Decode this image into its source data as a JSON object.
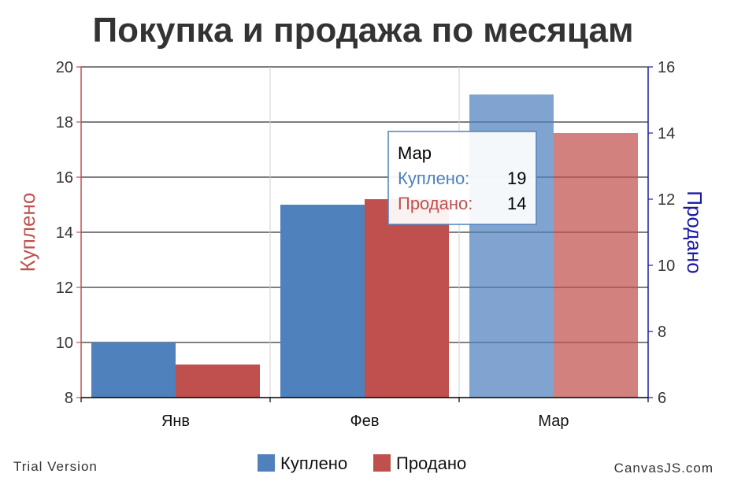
{
  "chart_data": {
    "type": "bar",
    "title": "Покупка и продажа по месяцам",
    "categories": [
      "Янв",
      "Фев",
      "Мар"
    ],
    "series": [
      {
        "name": "Куплено",
        "axis": "left",
        "color": "#4f81bd",
        "values": [
          10,
          15,
          19
        ]
      },
      {
        "name": "Продано",
        "axis": "right",
        "color": "#c0504d",
        "values": [
          7,
          12,
          14
        ]
      }
    ],
    "y_left": {
      "label": "Куплено",
      "color": "#c0504d",
      "min": 8,
      "max": 20,
      "ticks": [
        8,
        10,
        12,
        14,
        16,
        18,
        20
      ]
    },
    "y_right": {
      "label": "Продано",
      "color": "#1a1aa6",
      "min": 6,
      "max": 16,
      "ticks": [
        6,
        8,
        10,
        12,
        14,
        16
      ]
    },
    "grid": true,
    "legend": "bottom-center",
    "highlighted_category": "Мар"
  },
  "tooltip": {
    "title": "Мар",
    "rows": [
      {
        "label": "Куплено:",
        "value": "19",
        "color": "#4f81bd"
      },
      {
        "label": "Продано:",
        "value": "14",
        "color": "#c0504d"
      }
    ]
  },
  "footer": {
    "left": "Trial Version",
    "right": "CanvasJS.com"
  }
}
